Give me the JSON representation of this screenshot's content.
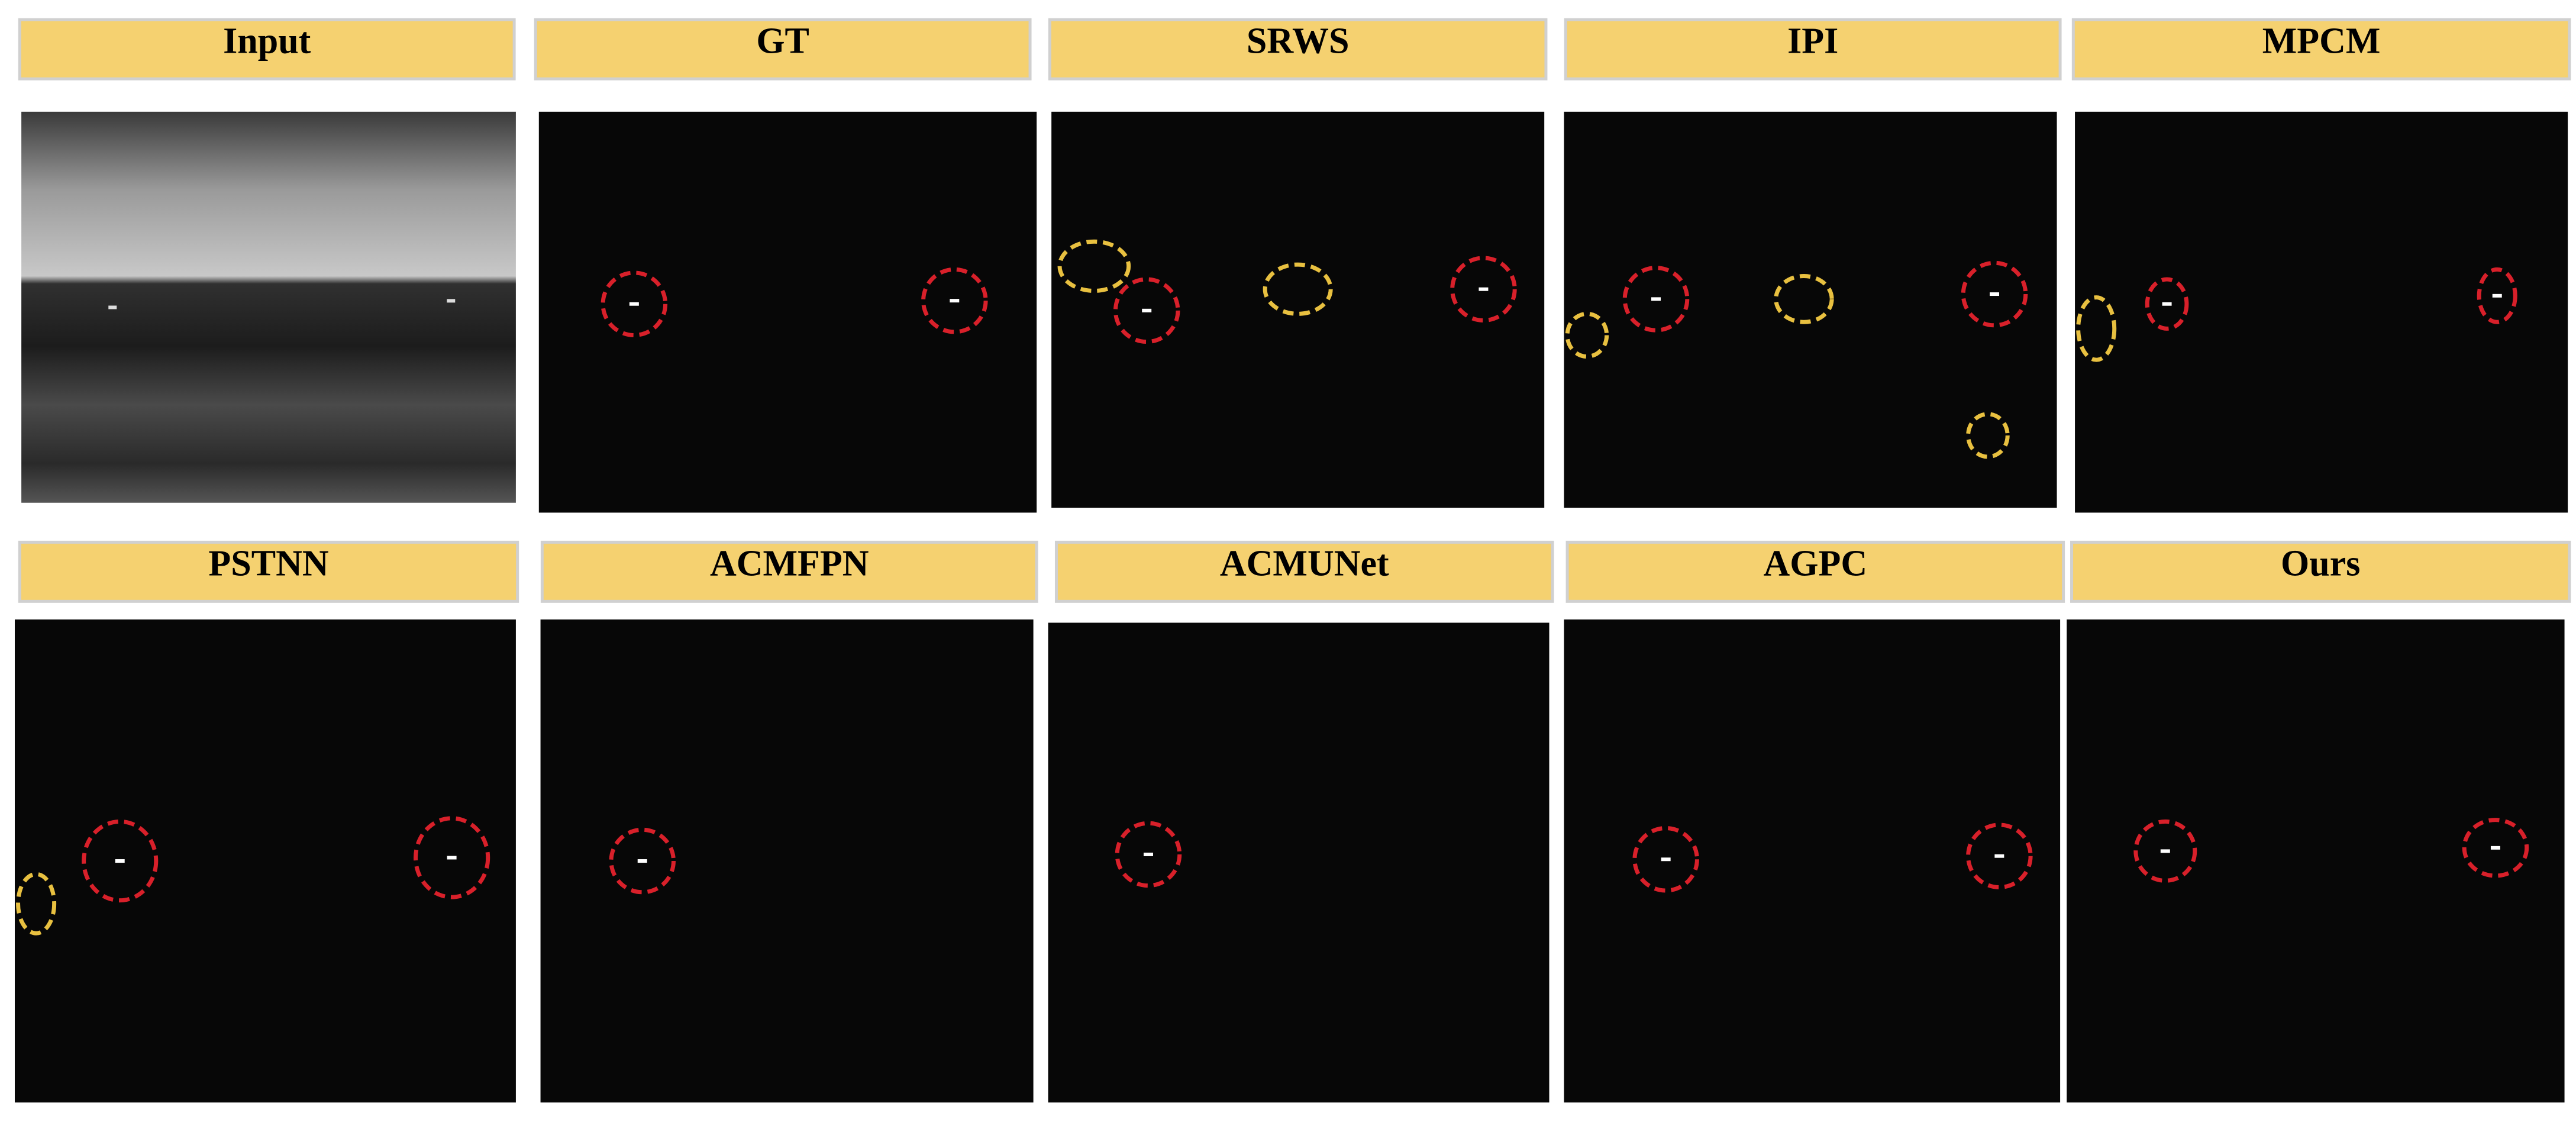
{
  "panels": [
    {
      "label": "Input"
    },
    {
      "label": "GT"
    },
    {
      "label": "SRWS"
    },
    {
      "label": "IPI"
    },
    {
      "label": "MPCM"
    },
    {
      "label": "PSTNN"
    },
    {
      "label": "ACMFPN"
    },
    {
      "label": "ACMUNet"
    },
    {
      "label": "AGPC"
    },
    {
      "label": "Ours"
    }
  ]
}
